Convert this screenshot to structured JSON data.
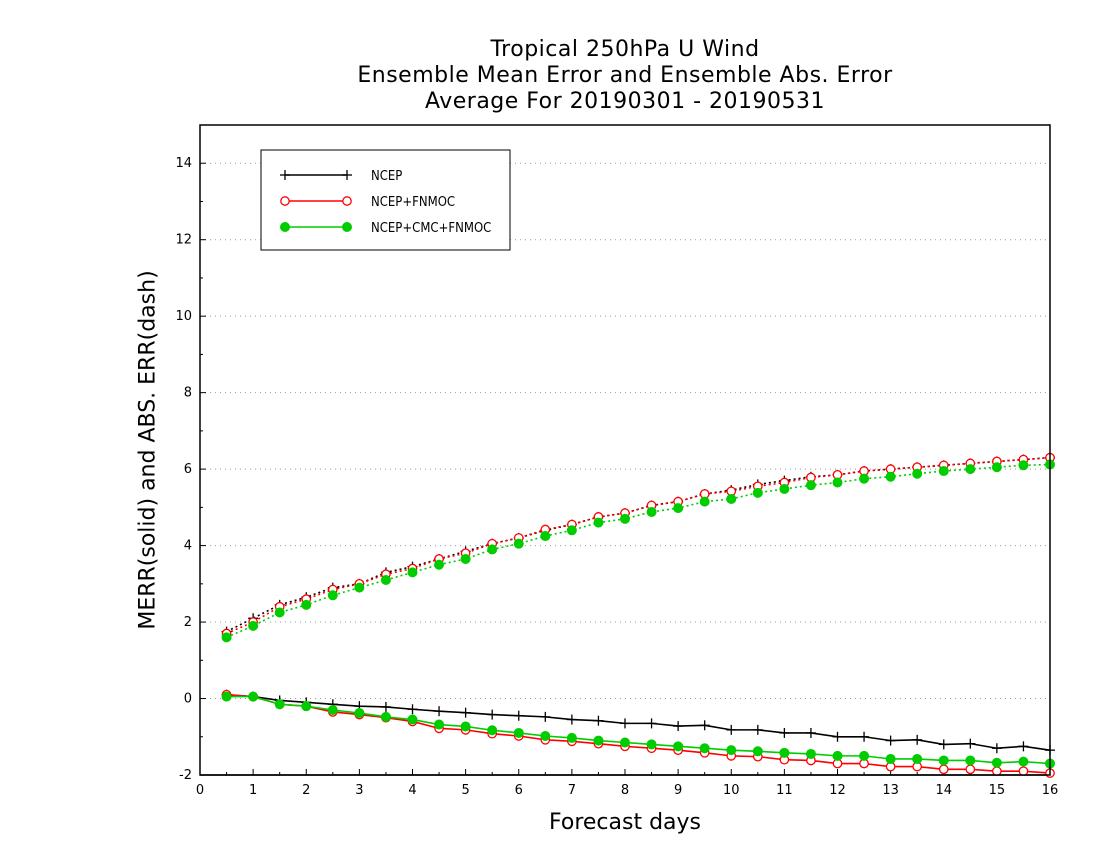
{
  "chart_data": {
    "type": "line",
    "title_lines": [
      "Tropical 250hPa U Wind",
      "Ensemble Mean Error and Ensemble Abs. Error",
      "Average For 20190301 - 20190531"
    ],
    "xlabel": "Forecast days",
    "ylabel": "MERR(solid) and ABS. ERR(dash)",
    "xlim": [
      0,
      16
    ],
    "ylim": [
      -2,
      15
    ],
    "xticks": [
      "0",
      "1",
      "2",
      "3",
      "4",
      "5",
      "6",
      "7",
      "8",
      "9",
      "10",
      "11",
      "12",
      "13",
      "14",
      "15",
      "16"
    ],
    "yticks": [
      "-2",
      "0",
      "2",
      "4",
      "6",
      "8",
      "10",
      "12",
      "14"
    ],
    "grid": "horizontal dotted",
    "legend_position": "top-left",
    "x": [
      0.5,
      1,
      1.5,
      2,
      2.5,
      3,
      3.5,
      4,
      4.5,
      5,
      5.5,
      6,
      6.5,
      7,
      7.5,
      8,
      8.5,
      9,
      9.5,
      10,
      10.5,
      11,
      11.5,
      12,
      12.5,
      13,
      13.5,
      14,
      14.5,
      15,
      15.5,
      16
    ],
    "series": [
      {
        "name": "NCEP",
        "color": "#000000",
        "marker": "plus",
        "mean_error": [
          0.1,
          0.05,
          -0.05,
          -0.1,
          -0.15,
          -0.2,
          -0.22,
          -0.28,
          -0.33,
          -0.37,
          -0.42,
          -0.45,
          -0.48,
          -0.55,
          -0.58,
          -0.65,
          -0.65,
          -0.72,
          -0.7,
          -0.82,
          -0.82,
          -0.9,
          -0.9,
          -1.0,
          -1.0,
          -1.1,
          -1.08,
          -1.2,
          -1.18,
          -1.3,
          -1.25,
          -1.35
        ],
        "abs_error": [
          1.75,
          2.1,
          2.45,
          2.65,
          2.9,
          3.0,
          3.3,
          3.45,
          3.65,
          3.85,
          4.05,
          4.2,
          4.4,
          4.55,
          4.75,
          4.85,
          5.05,
          5.15,
          5.35,
          5.45,
          5.6,
          5.7,
          5.8,
          5.85,
          5.95,
          6.0,
          6.05,
          6.1,
          6.15,
          6.2,
          6.25,
          6.3
        ]
      },
      {
        "name": "NCEP+FNMOC",
        "color": "#ff0000",
        "marker": "open-circle",
        "mean_error": [
          0.1,
          0.05,
          -0.15,
          -0.2,
          -0.35,
          -0.42,
          -0.5,
          -0.6,
          -0.78,
          -0.82,
          -0.92,
          -0.98,
          -1.08,
          -1.12,
          -1.18,
          -1.25,
          -1.3,
          -1.35,
          -1.42,
          -1.5,
          -1.52,
          -1.6,
          -1.62,
          -1.7,
          -1.7,
          -1.78,
          -1.78,
          -1.85,
          -1.85,
          -1.9,
          -1.9,
          -1.95
        ],
        "abs_error": [
          1.7,
          2.0,
          2.4,
          2.6,
          2.85,
          3.0,
          3.25,
          3.4,
          3.65,
          3.8,
          4.05,
          4.2,
          4.42,
          4.55,
          4.75,
          4.85,
          5.05,
          5.15,
          5.35,
          5.42,
          5.55,
          5.65,
          5.78,
          5.85,
          5.95,
          6.0,
          6.05,
          6.1,
          6.15,
          6.2,
          6.25,
          6.3
        ]
      },
      {
        "name": "NCEP+CMC+FNMOC",
        "color": "#00cc00",
        "marker": "filled-circle",
        "mean_error": [
          0.05,
          0.05,
          -0.15,
          -0.2,
          -0.3,
          -0.38,
          -0.48,
          -0.55,
          -0.68,
          -0.73,
          -0.83,
          -0.9,
          -0.98,
          -1.03,
          -1.1,
          -1.15,
          -1.2,
          -1.25,
          -1.3,
          -1.35,
          -1.38,
          -1.42,
          -1.45,
          -1.5,
          -1.5,
          -1.58,
          -1.58,
          -1.62,
          -1.62,
          -1.68,
          -1.65,
          -1.7
        ],
        "abs_error": [
          1.6,
          1.9,
          2.25,
          2.45,
          2.7,
          2.9,
          3.1,
          3.3,
          3.5,
          3.65,
          3.9,
          4.05,
          4.25,
          4.4,
          4.6,
          4.7,
          4.88,
          4.98,
          5.15,
          5.22,
          5.38,
          5.48,
          5.58,
          5.65,
          5.75,
          5.8,
          5.88,
          5.95,
          6.0,
          6.05,
          6.1,
          6.12
        ]
      }
    ]
  }
}
